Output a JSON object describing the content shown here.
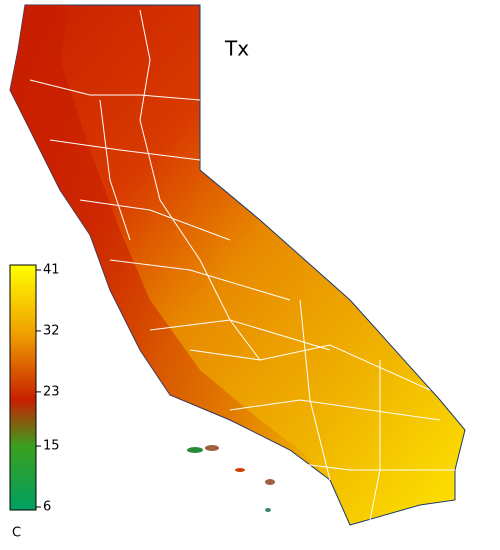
{
  "title": "Tx",
  "colorbar": {
    "range": [
      6,
      41
    ],
    "ticks": [
      6,
      15,
      23,
      32,
      41
    ],
    "unit": "C"
  }
}
